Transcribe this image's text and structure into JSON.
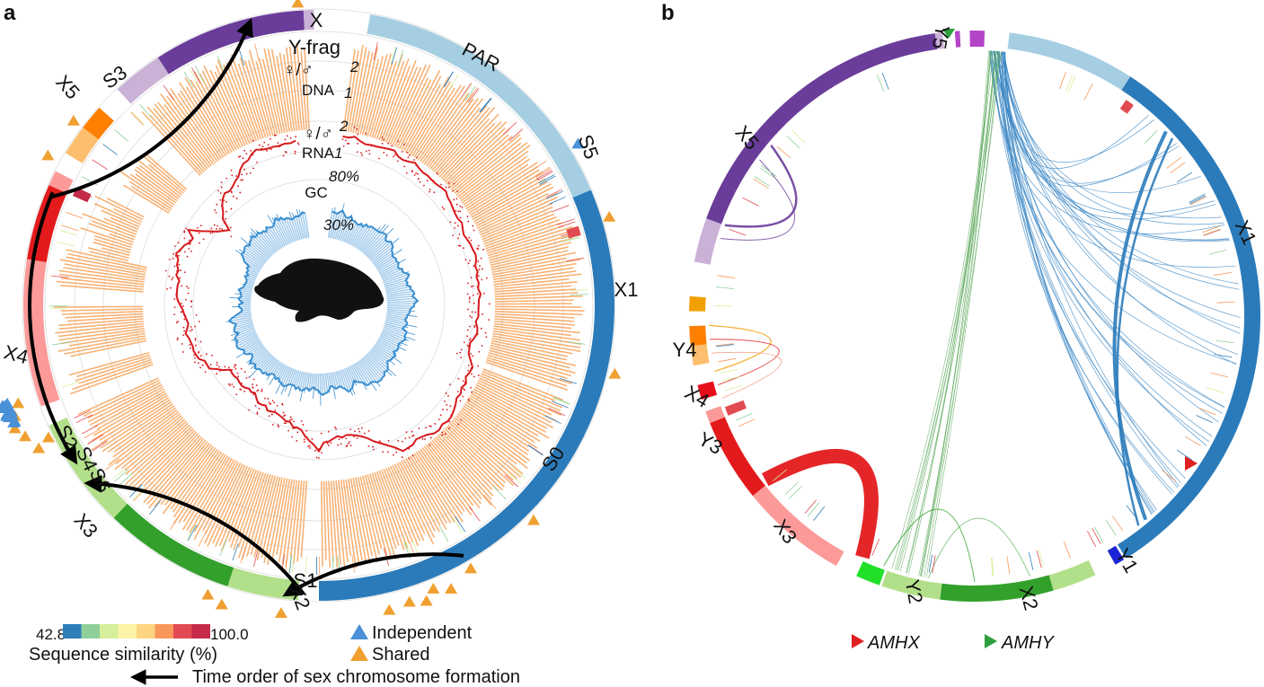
{
  "panel_a": {
    "label": "a",
    "chromosome_labels": {
      "x": "X",
      "y_frag": "Y-frag",
      "par": "PAR",
      "x1": "X1",
      "x2": "X2",
      "x3": "X3",
      "x4": "X4",
      "x5": "X5"
    },
    "stratum_labels": {
      "s0": "S0",
      "s1": "S1",
      "s2": "S2",
      "s3": "S3",
      "s4": "S4",
      "s5": "S5",
      "s6": "S6"
    },
    "track_labels": {
      "dna_ratio": "♀/♂",
      "dna": "DNA",
      "dna_tick_2": "2",
      "dna_tick_1": "1",
      "rna_ratio": "♀/♂",
      "rna": "RNA",
      "rna_tick_2": "2",
      "rna_tick_1": "1",
      "gc": "GC",
      "gc_tick_80": "80%",
      "gc_tick_30": "30%"
    },
    "colorbar": {
      "min": "42.8",
      "max": "100.0",
      "label": "Sequence similarity (%)",
      "colors": [
        "#2e7fb8",
        "#8fcf9a",
        "#d6ef9c",
        "#fdf3a6",
        "#fdd581",
        "#f9975a",
        "#e24a52",
        "#c62a4a"
      ]
    },
    "legend": {
      "independent": "Independent",
      "shared": "Shared",
      "independent_color": "#4a90d9",
      "shared_color": "#f0a030"
    },
    "arrow_legend": "Time order of sex chromosome formation"
  },
  "panel_b": {
    "label": "b",
    "chromosome_labels": {
      "x1": "X1",
      "x2": "X2",
      "x3": "X3",
      "x4": "X4",
      "x5": "X5",
      "y1": "Y1",
      "y2": "Y2",
      "y3": "Y3",
      "y4": "Y4",
      "y5": "Y5"
    },
    "legend": {
      "amhx": "AMHX",
      "amhy": "AMHY",
      "amhx_color": "#e02020",
      "amhy_color": "#2e9e3e"
    }
  },
  "colors": {
    "x1_dark": "#2b7bba",
    "par_light": "#a6cee3",
    "x5_dark": "#6a3d9a",
    "x5_light": "#cab2d6",
    "x4_dark": "#ff7f00",
    "x4_light": "#fdbf6f",
    "x3_dark": "#e31a1c",
    "x3_light": "#fb9a99",
    "x2_dark": "#33a02c",
    "x2_light": "#b2df8a",
    "dna": "#f6a55e",
    "rna": "#d7191c",
    "gc": "#3a8fd0"
  }
}
